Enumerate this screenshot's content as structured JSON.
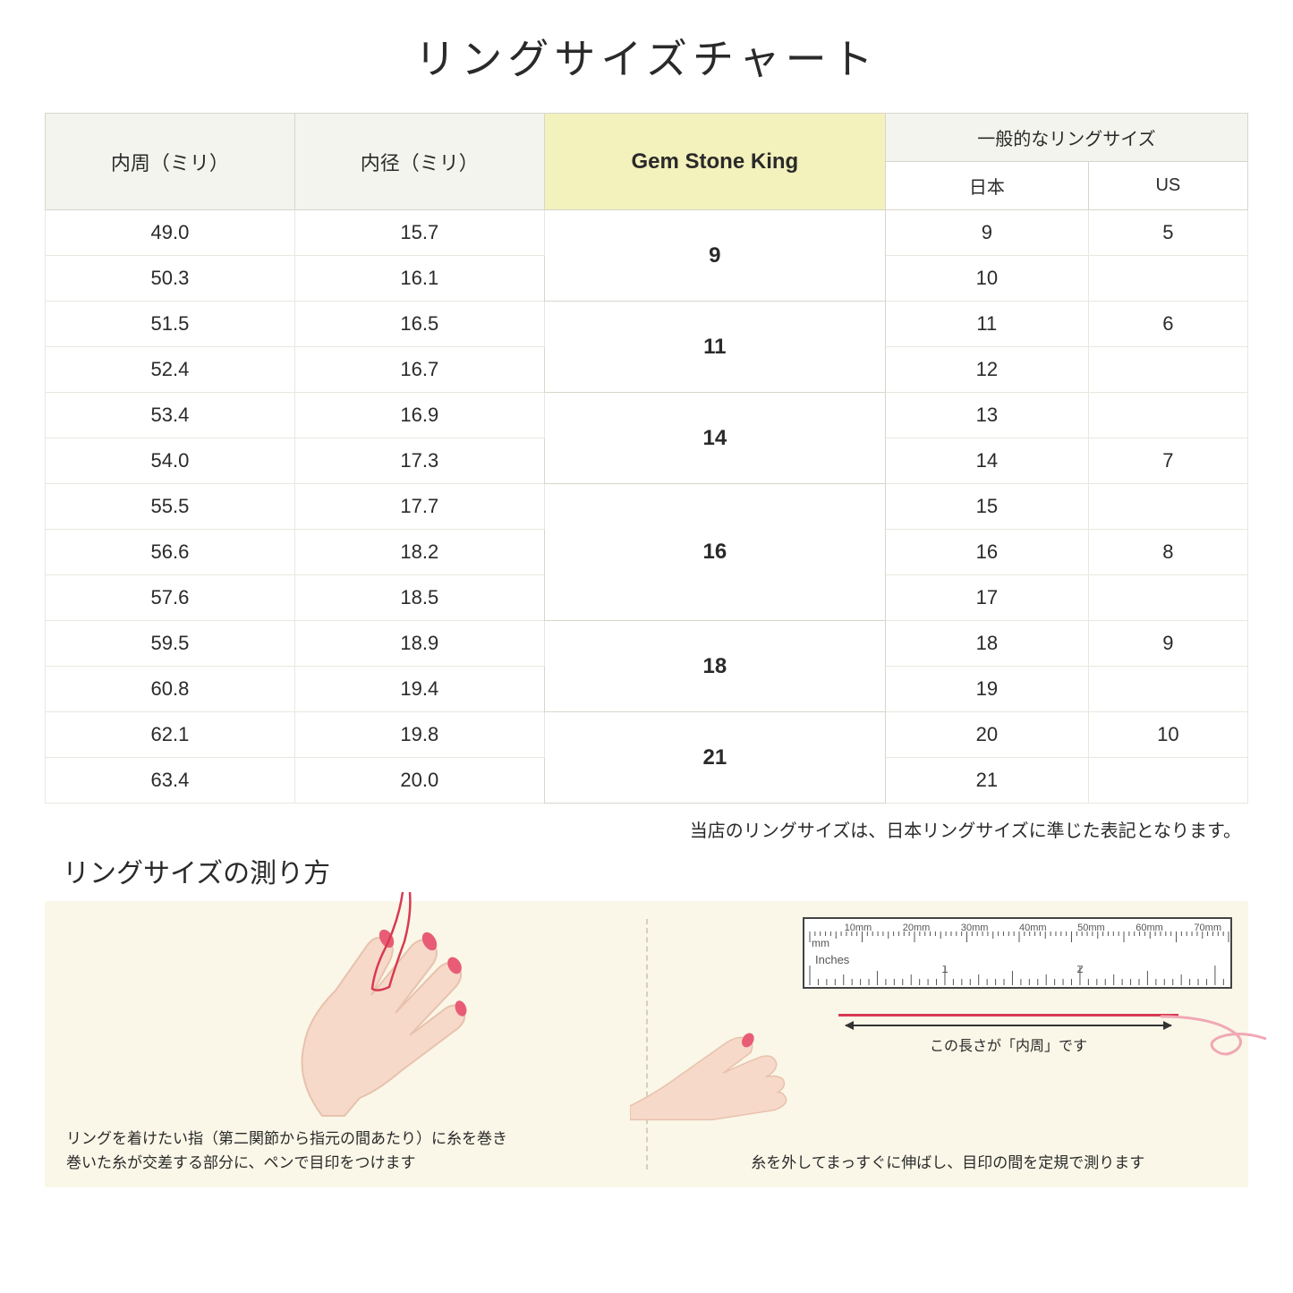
{
  "title": "リングサイズチャート",
  "headers": {
    "circumference": "内周（ミリ）",
    "diameter": "内径（ミリ）",
    "gsk": "Gem Stone King",
    "general": "一般的なリングサイズ",
    "japan": "日本",
    "us": "US"
  },
  "groups": [
    {
      "gsk": "9",
      "rows": [
        {
          "c": "49.0",
          "d": "15.7",
          "jp": "9",
          "us": "5"
        },
        {
          "c": "50.3",
          "d": "16.1",
          "jp": "10",
          "us": ""
        }
      ]
    },
    {
      "gsk": "11",
      "rows": [
        {
          "c": "51.5",
          "d": "16.5",
          "jp": "11",
          "us": "6"
        },
        {
          "c": "52.4",
          "d": "16.7",
          "jp": "12",
          "us": ""
        }
      ]
    },
    {
      "gsk": "14",
      "rows": [
        {
          "c": "53.4",
          "d": "16.9",
          "jp": "13",
          "us": ""
        },
        {
          "c": "54.0",
          "d": "17.3",
          "jp": "14",
          "us": "7"
        }
      ]
    },
    {
      "gsk": "16",
      "rows": [
        {
          "c": "55.5",
          "d": "17.7",
          "jp": "15",
          "us": ""
        },
        {
          "c": "56.6",
          "d": "18.2",
          "jp": "16",
          "us": "8"
        },
        {
          "c": "57.6",
          "d": "18.5",
          "jp": "17",
          "us": ""
        }
      ]
    },
    {
      "gsk": "18",
      "rows": [
        {
          "c": "59.5",
          "d": "18.9",
          "jp": "18",
          "us": "9"
        },
        {
          "c": "60.8",
          "d": "19.4",
          "jp": "19",
          "us": ""
        }
      ]
    },
    {
      "gsk": "21",
      "rows": [
        {
          "c": "62.1",
          "d": "19.8",
          "jp": "20",
          "us": "10"
        },
        {
          "c": "63.4",
          "d": "20.0",
          "jp": "21",
          "us": ""
        }
      ]
    }
  ],
  "note": "当店のリングサイズは、日本リングサイズに準じた表記となります。",
  "howto": {
    "title": "リングサイズの測り方",
    "left_caption": "リングを着けたい指（第二関節から指元の間あたり）に糸を巻き\n巻いた糸が交差する部分に、ペンで目印をつけます",
    "right_caption": "糸を外してまっすぐに伸ばし、目印の間を定規で測ります",
    "measure_label": "この長さが「内周」です",
    "ruler": {
      "mm_labels": [
        "",
        "10mm",
        "20mm",
        "30mm",
        "40mm",
        "50mm",
        "60mm",
        "70mm"
      ],
      "mm_unit": "mm",
      "in_unit": "Inches",
      "in_labels": [
        "1",
        "2"
      ]
    }
  },
  "colors": {
    "header_bg": "#f4f4ef",
    "gsk_bg": "#f3f1bc",
    "border": "#d6d6cc",
    "howto_bg": "#faf7e8",
    "skin": "#f6d9c9",
    "skin_dark": "#e8c2ad",
    "nail": "#e85d75",
    "thread": "#d83a52"
  }
}
